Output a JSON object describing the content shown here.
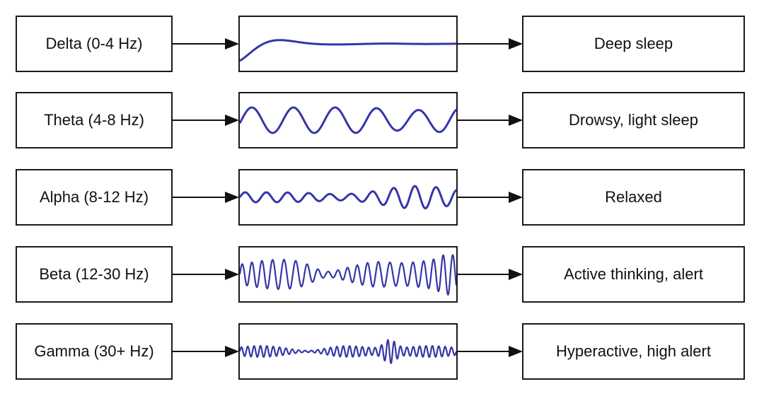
{
  "colors": {
    "wave": "#3536a8",
    "arrow": "#111111",
    "border": "#1a1a1a"
  },
  "rows": [
    {
      "band": "Delta (0-4 Hz)",
      "state": "Deep sleep",
      "wave_type": "decaying-slow"
    },
    {
      "band": "Theta (4-8 Hz)",
      "state": "Drowsy, light sleep",
      "wave_type": "theta"
    },
    {
      "band": "Alpha (8-12 Hz)",
      "state": "Relaxed",
      "wave_type": "alpha"
    },
    {
      "band": "Beta (12-30 Hz)",
      "state": "Active thinking, alert",
      "wave_type": "beta"
    },
    {
      "band": "Gamma (30+ Hz)",
      "state": "Hyperactive, high alert",
      "wave_type": "gamma"
    }
  ]
}
